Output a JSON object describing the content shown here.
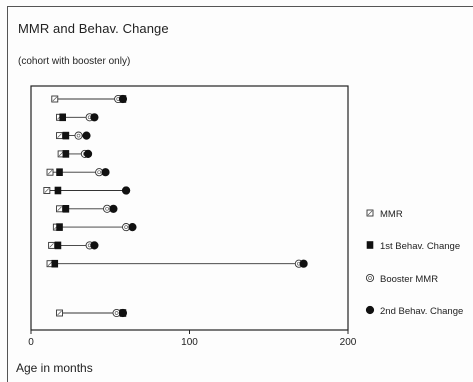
{
  "chart_data": {
    "type": "scatter",
    "title": "MMR and Behav. Change",
    "subtitle": "(cohort with booster only)",
    "xlabel": "Age in months",
    "ylabel": "",
    "xlim": [
      0,
      200
    ],
    "x_ticks": [
      0,
      100,
      200
    ],
    "x_tick_labels": [
      "0",
      "100",
      "200"
    ],
    "grid": false,
    "legend_position": "right",
    "legend": [
      {
        "name": "MMR",
        "marker": "open-square"
      },
      {
        "name": "1st Behav. Change",
        "marker": "filled-square"
      },
      {
        "name": "Booster MMR",
        "marker": "open-circle"
      },
      {
        "name": "2nd Behav. Change",
        "marker": "filled-circle"
      }
    ],
    "cases": [
      {
        "mmr": 15,
        "first_change": 58,
        "booster": 55,
        "second_change": 58
      },
      {
        "mmr": 18,
        "first_change": 20,
        "booster": 37,
        "second_change": 40
      },
      {
        "mmr": 18,
        "first_change": 22,
        "booster": 30,
        "second_change": 35
      },
      {
        "mmr": 19,
        "first_change": 22,
        "booster": 34,
        "second_change": 36
      },
      {
        "mmr": 12,
        "first_change": 18,
        "booster": 43,
        "second_change": 47
      },
      {
        "mmr": 10,
        "first_change": 17,
        "booster": 60,
        "second_change": 60
      },
      {
        "mmr": 18,
        "first_change": 22,
        "booster": 48,
        "second_change": 52
      },
      {
        "mmr": 16,
        "first_change": 18,
        "booster": 60,
        "second_change": 64
      },
      {
        "mmr": 13,
        "first_change": 17,
        "booster": 37,
        "second_change": 40
      },
      {
        "mmr": 12,
        "first_change": 15,
        "booster": 169,
        "second_change": 172
      },
      {
        "mmr": 18,
        "first_change": 58,
        "booster": 54,
        "second_change": 58
      }
    ]
  }
}
